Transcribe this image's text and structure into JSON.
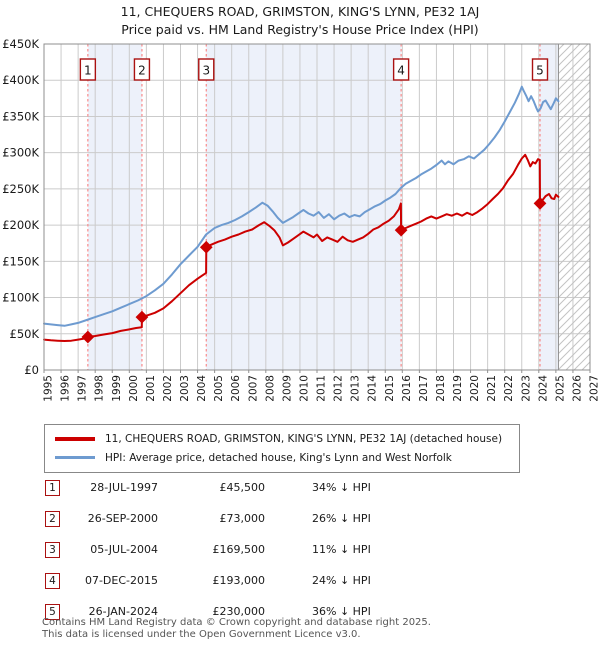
{
  "title": {
    "line1": "11, CHEQUERS ROAD, GRIMSTON, KING'S LYNN, PE32 1AJ",
    "line2": "Price paid vs. HM Land Registry's House Price Index (HPI)"
  },
  "chart_data": {
    "type": "line",
    "x_axis": {
      "min": 1995,
      "max": 2027,
      "ticks": [
        1995,
        1996,
        1997,
        1998,
        1999,
        2000,
        2001,
        2002,
        2003,
        2004,
        2005,
        2006,
        2007,
        2008,
        2009,
        2010,
        2011,
        2012,
        2013,
        2014,
        2015,
        2016,
        2017,
        2018,
        2019,
        2020,
        2021,
        2022,
        2023,
        2024,
        2025,
        2026,
        2027
      ]
    },
    "y_axis": {
      "min": 0,
      "max": 450,
      "unit": "GBP thousands",
      "ticks": [
        {
          "v": 0,
          "label": "£0"
        },
        {
          "v": 50,
          "label": "£50K"
        },
        {
          "v": 100,
          "label": "£100K"
        },
        {
          "v": 150,
          "label": "£150K"
        },
        {
          "v": 200,
          "label": "£200K"
        },
        {
          "v": 250,
          "label": "£250K"
        },
        {
          "v": 300,
          "label": "£300K"
        },
        {
          "v": 350,
          "label": "£350K"
        },
        {
          "v": 400,
          "label": "£400K"
        },
        {
          "v": 450,
          "label": "£450K"
        }
      ]
    },
    "series": [
      {
        "name": "HPI: Average price, detached house, King's Lynn and West Norfolk",
        "color": "#6e9bd0",
        "points": [
          [
            1995.0,
            64
          ],
          [
            1995.4,
            63
          ],
          [
            1995.8,
            62
          ],
          [
            1996.2,
            61
          ],
          [
            1996.6,
            63
          ],
          [
            1997.0,
            65
          ],
          [
            1997.5,
            69
          ],
          [
            1998.0,
            73
          ],
          [
            1998.5,
            77
          ],
          [
            1999.0,
            81
          ],
          [
            1999.5,
            86
          ],
          [
            2000.0,
            91
          ],
          [
            2000.5,
            96
          ],
          [
            2001.0,
            102
          ],
          [
            2001.5,
            110
          ],
          [
            2002.0,
            119
          ],
          [
            2002.5,
            132
          ],
          [
            2003.0,
            146
          ],
          [
            2003.5,
            158
          ],
          [
            2004.0,
            170
          ],
          [
            2004.5,
            187
          ],
          [
            2005.0,
            196
          ],
          [
            2005.4,
            200
          ],
          [
            2005.8,
            203
          ],
          [
            2006.2,
            207
          ],
          [
            2006.6,
            212
          ],
          [
            2007.0,
            218
          ],
          [
            2007.4,
            224
          ],
          [
            2007.8,
            231
          ],
          [
            2008.1,
            227
          ],
          [
            2008.4,
            219
          ],
          [
            2008.7,
            210
          ],
          [
            2009.0,
            203
          ],
          [
            2009.3,
            207
          ],
          [
            2009.6,
            211
          ],
          [
            2009.9,
            216
          ],
          [
            2010.2,
            221
          ],
          [
            2010.5,
            216
          ],
          [
            2010.8,
            213
          ],
          [
            2011.1,
            218
          ],
          [
            2011.4,
            210
          ],
          [
            2011.7,
            215
          ],
          [
            2012.0,
            208
          ],
          [
            2012.3,
            213
          ],
          [
            2012.6,
            216
          ],
          [
            2012.9,
            211
          ],
          [
            2013.2,
            214
          ],
          [
            2013.5,
            212
          ],
          [
            2013.8,
            218
          ],
          [
            2014.1,
            222
          ],
          [
            2014.4,
            226
          ],
          [
            2014.7,
            229
          ],
          [
            2015.0,
            234
          ],
          [
            2015.3,
            238
          ],
          [
            2015.6,
            243
          ],
          [
            2015.9,
            251
          ],
          [
            2016.2,
            257
          ],
          [
            2016.5,
            261
          ],
          [
            2016.8,
            265
          ],
          [
            2017.1,
            270
          ],
          [
            2017.4,
            274
          ],
          [
            2017.7,
            278
          ],
          [
            2018.0,
            283
          ],
          [
            2018.3,
            289
          ],
          [
            2018.5,
            284
          ],
          [
            2018.7,
            288
          ],
          [
            2019.0,
            284
          ],
          [
            2019.3,
            289
          ],
          [
            2019.6,
            291
          ],
          [
            2019.9,
            295
          ],
          [
            2020.2,
            292
          ],
          [
            2020.5,
            298
          ],
          [
            2020.8,
            304
          ],
          [
            2021.1,
            312
          ],
          [
            2021.4,
            321
          ],
          [
            2021.7,
            331
          ],
          [
            2022.0,
            343
          ],
          [
            2022.3,
            356
          ],
          [
            2022.6,
            369
          ],
          [
            2022.85,
            382
          ],
          [
            2023.0,
            391
          ],
          [
            2023.1,
            386
          ],
          [
            2023.25,
            379
          ],
          [
            2023.4,
            371
          ],
          [
            2023.55,
            378
          ],
          [
            2023.7,
            371
          ],
          [
            2023.85,
            362
          ],
          [
            2023.95,
            357
          ],
          [
            2024.1,
            361
          ],
          [
            2024.25,
            370
          ],
          [
            2024.4,
            372
          ],
          [
            2024.55,
            366
          ],
          [
            2024.7,
            360
          ],
          [
            2024.85,
            367
          ],
          [
            2025.0,
            375
          ],
          [
            2025.15,
            371
          ]
        ]
      },
      {
        "name": "11, CHEQUERS ROAD, GRIMSTON, KING'S LYNN, PE32 1AJ (detached house)",
        "color": "#cc0000",
        "points": [
          [
            1995.0,
            42
          ],
          [
            1995.4,
            41
          ],
          [
            1995.8,
            40.5
          ],
          [
            1996.2,
            40
          ],
          [
            1996.6,
            40.5
          ],
          [
            1997.0,
            42
          ],
          [
            1997.3,
            43
          ],
          [
            1997.57,
            45.5
          ],
          [
            1998.0,
            47
          ],
          [
            1998.5,
            49
          ],
          [
            1999.0,
            51
          ],
          [
            1999.5,
            54
          ],
          [
            2000.0,
            56
          ],
          [
            2000.4,
            58
          ],
          [
            2000.73,
            59
          ],
          [
            2000.74,
            73
          ],
          [
            2001.0,
            75
          ],
          [
            2001.5,
            79
          ],
          [
            2002.0,
            85
          ],
          [
            2002.5,
            95
          ],
          [
            2003.0,
            106
          ],
          [
            2003.5,
            117
          ],
          [
            2004.0,
            126
          ],
          [
            2004.25,
            130
          ],
          [
            2004.5,
            134
          ],
          [
            2004.51,
            169.5
          ],
          [
            2004.8,
            173
          ],
          [
            2005.2,
            177
          ],
          [
            2005.6,
            180
          ],
          [
            2006.0,
            184
          ],
          [
            2006.4,
            187
          ],
          [
            2006.8,
            191
          ],
          [
            2007.2,
            194
          ],
          [
            2007.6,
            200
          ],
          [
            2007.9,
            204
          ],
          [
            2008.2,
            199
          ],
          [
            2008.5,
            193
          ],
          [
            2008.8,
            183
          ],
          [
            2009.0,
            172
          ],
          [
            2009.3,
            176
          ],
          [
            2009.6,
            181
          ],
          [
            2009.9,
            186
          ],
          [
            2010.2,
            191
          ],
          [
            2010.5,
            187
          ],
          [
            2010.8,
            183
          ],
          [
            2011.0,
            187
          ],
          [
            2011.3,
            178
          ],
          [
            2011.6,
            183
          ],
          [
            2011.9,
            180
          ],
          [
            2012.2,
            177
          ],
          [
            2012.5,
            184
          ],
          [
            2012.8,
            179
          ],
          [
            2013.1,
            177
          ],
          [
            2013.4,
            180
          ],
          [
            2013.7,
            183
          ],
          [
            2014.0,
            188
          ],
          [
            2014.3,
            194
          ],
          [
            2014.6,
            197
          ],
          [
            2014.9,
            202
          ],
          [
            2015.2,
            206
          ],
          [
            2015.5,
            212
          ],
          [
            2015.8,
            222
          ],
          [
            2015.92,
            230
          ],
          [
            2015.93,
            193
          ],
          [
            2016.2,
            196
          ],
          [
            2016.5,
            199
          ],
          [
            2016.8,
            202
          ],
          [
            2017.1,
            205
          ],
          [
            2017.4,
            209
          ],
          [
            2017.7,
            212
          ],
          [
            2018.0,
            209
          ],
          [
            2018.3,
            212
          ],
          [
            2018.6,
            215
          ],
          [
            2018.9,
            213
          ],
          [
            2019.2,
            216
          ],
          [
            2019.5,
            213
          ],
          [
            2019.8,
            217
          ],
          [
            2020.1,
            214
          ],
          [
            2020.4,
            218
          ],
          [
            2020.7,
            223
          ],
          [
            2021.0,
            229
          ],
          [
            2021.3,
            236
          ],
          [
            2021.6,
            243
          ],
          [
            2021.9,
            251
          ],
          [
            2022.2,
            262
          ],
          [
            2022.5,
            271
          ],
          [
            2022.8,
            284
          ],
          [
            2023.0,
            292
          ],
          [
            2023.2,
            297
          ],
          [
            2023.35,
            290
          ],
          [
            2023.5,
            281
          ],
          [
            2023.65,
            287
          ],
          [
            2023.8,
            285
          ],
          [
            2023.95,
            291
          ],
          [
            2024.06,
            290
          ],
          [
            2024.07,
            230
          ],
          [
            2024.2,
            234
          ],
          [
            2024.4,
            240
          ],
          [
            2024.6,
            243
          ],
          [
            2024.75,
            237
          ],
          [
            2024.9,
            236
          ],
          [
            2025.0,
            242
          ],
          [
            2025.15,
            239
          ]
        ]
      }
    ],
    "sales": [
      {
        "num": "1",
        "year": 1997.57,
        "value": 45.5
      },
      {
        "num": "2",
        "year": 2000.74,
        "value": 73
      },
      {
        "num": "3",
        "year": 2004.51,
        "value": 169.5
      },
      {
        "num": "4",
        "year": 2015.93,
        "value": 193
      },
      {
        "num": "5",
        "year": 2024.07,
        "value": 230
      }
    ],
    "shaded_bands": [
      [
        1997.57,
        2000.74
      ],
      [
        2004.51,
        2015.93
      ],
      [
        2024.07,
        2025.15
      ]
    ],
    "future_hatch": [
      2025.15,
      2027
    ],
    "colors": {
      "price_paid_line": "#cc0000",
      "hpi_line": "#6e9bd0",
      "sale_dashed_line": "#f98b8b",
      "band_fill": "#edf1fa",
      "grid": "#cbcbcb",
      "plot_border": "#8f8f8f",
      "hatch_line": "#c3c3c3",
      "marker_box_border": "#aa1111"
    }
  },
  "legend": {
    "entries": [
      {
        "label": "11, CHEQUERS ROAD, GRIMSTON, KING'S LYNN, PE32 1AJ (detached house)",
        "color": "#cc0000"
      },
      {
        "label": "HPI: Average price, detached house, King's Lynn and West Norfolk",
        "color": "#6e9bd0"
      }
    ]
  },
  "transactions": [
    {
      "num": "1",
      "date": "28-JUL-1997",
      "price": "£45,500",
      "vs_hpi": "34% ↓ HPI"
    },
    {
      "num": "2",
      "date": "26-SEP-2000",
      "price": "£73,000",
      "vs_hpi": "26% ↓ HPI"
    },
    {
      "num": "3",
      "date": "05-JUL-2004",
      "price": "£169,500",
      "vs_hpi": "11% ↓ HPI"
    },
    {
      "num": "4",
      "date": "07-DEC-2015",
      "price": "£193,000",
      "vs_hpi": "24% ↓ HPI"
    },
    {
      "num": "5",
      "date": "26-JAN-2024",
      "price": "£230,000",
      "vs_hpi": "36% ↓ HPI"
    }
  ],
  "footer": {
    "line1": "Contains HM Land Registry data © Crown copyright and database right 2025.",
    "line2": "This data is licensed under the Open Government Licence v3.0."
  }
}
